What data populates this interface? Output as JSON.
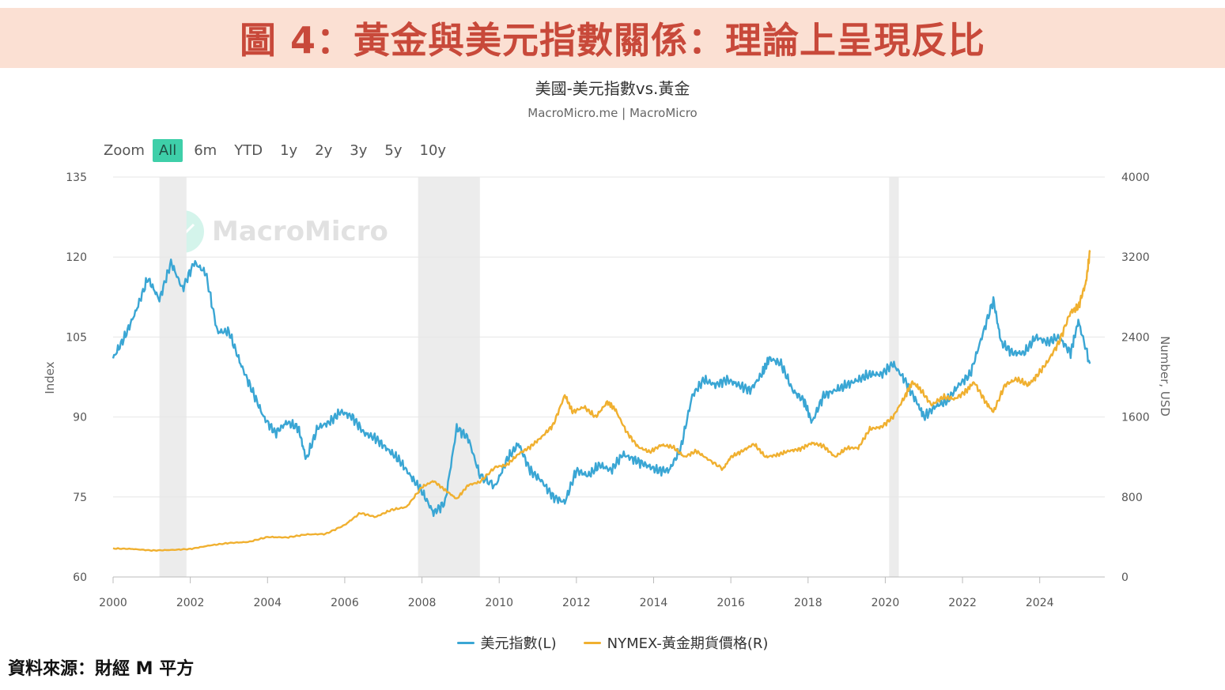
{
  "banner": {
    "title": "圖 4：黃金與美元指數關係：理論上呈現反比"
  },
  "source": "資料來源：財經 M 平方",
  "watermark": {
    "text": "MacroMicro"
  },
  "zoom": {
    "label": "Zoom",
    "buttons": [
      "All",
      "6m",
      "YTD",
      "1y",
      "2y",
      "3y",
      "5y",
      "10y"
    ],
    "active": "All"
  },
  "chart_data": {
    "type": "line",
    "title": "美國-美元指數vs.黃金",
    "subtitle": "MacroMicro.me | MacroMicro",
    "xlabel": "",
    "x_range": [
      2000.0,
      2025.3
    ],
    "x_ticks": [
      "2000",
      "2002",
      "2004",
      "2006",
      "2008",
      "2010",
      "2012",
      "2014",
      "2016",
      "2018",
      "2020",
      "2022",
      "2024"
    ],
    "y_left": {
      "label": "Index",
      "ylim": [
        60,
        135
      ],
      "ticks": [
        "135",
        "120",
        "105",
        "90",
        "75",
        "60"
      ]
    },
    "y_right": {
      "label": "Number, USD",
      "ylim": [
        0,
        4000
      ],
      "ticks": [
        "4000",
        "3200",
        "2400",
        "1600",
        "800",
        "0"
      ]
    },
    "grid": true,
    "legend_position": "bottom-center",
    "recession_bands": [
      [
        2001.2,
        2001.9
      ],
      [
        2007.9,
        2009.5
      ],
      [
        2020.1,
        2020.35
      ]
    ],
    "series": [
      {
        "name": "美元指數(L)",
        "axis": "left",
        "color": "#3aa6d4",
        "x": [
          2000.0,
          2000.3,
          2000.6,
          2000.9,
          2001.2,
          2001.5,
          2001.8,
          2002.1,
          2002.4,
          2002.7,
          2003.0,
          2003.3,
          2003.6,
          2003.9,
          2004.2,
          2004.5,
          2004.8,
          2005.0,
          2005.3,
          2005.6,
          2005.9,
          2006.2,
          2006.5,
          2006.8,
          2007.1,
          2007.4,
          2007.7,
          2008.0,
          2008.3,
          2008.6,
          2008.9,
          2009.2,
          2009.5,
          2009.9,
          2010.2,
          2010.5,
          2010.8,
          2011.1,
          2011.4,
          2011.7,
          2012.0,
          2012.3,
          2012.6,
          2012.9,
          2013.2,
          2013.5,
          2013.8,
          2014.1,
          2014.4,
          2014.7,
          2015.0,
          2015.3,
          2015.6,
          2015.9,
          2016.2,
          2016.5,
          2016.8,
          2017.0,
          2017.3,
          2017.6,
          2017.9,
          2018.1,
          2018.4,
          2018.7,
          2019.0,
          2019.3,
          2019.6,
          2019.9,
          2020.2,
          2020.5,
          2020.8,
          2021.0,
          2021.3,
          2021.6,
          2021.9,
          2022.2,
          2022.5,
          2022.8,
          2023.0,
          2023.3,
          2023.6,
          2023.9,
          2024.2,
          2024.5,
          2024.8,
          2025.0,
          2025.3
        ],
        "values": [
          101,
          105,
          110,
          116,
          112,
          119,
          114,
          119,
          117,
          106,
          106,
          100,
          95,
          90,
          87,
          89,
          88,
          82,
          88,
          89,
          91,
          90,
          87,
          86,
          84,
          82,
          79,
          76,
          72,
          74,
          88,
          86,
          79,
          77,
          82,
          85,
          80,
          78,
          75,
          74,
          80,
          79,
          81,
          80,
          83,
          82,
          81,
          80,
          80,
          84,
          94,
          97,
          96,
          97,
          96,
          95,
          98,
          101,
          100,
          95,
          93,
          89,
          94,
          95,
          96,
          97,
          98,
          98,
          100,
          97,
          93,
          90,
          92,
          93,
          96,
          98,
          105,
          112,
          104,
          102,
          102,
          105,
          104,
          105,
          102,
          108,
          100
        ]
      },
      {
        "name": "NYMEX-黃金期貨價格(R)",
        "axis": "right",
        "color": "#f0b030",
        "x": [
          2000.0,
          2000.5,
          2001.0,
          2001.5,
          2002.0,
          2002.5,
          2003.0,
          2003.5,
          2004.0,
          2004.5,
          2005.0,
          2005.5,
          2006.0,
          2006.4,
          2006.8,
          2007.2,
          2007.6,
          2008.0,
          2008.3,
          2008.6,
          2008.9,
          2009.2,
          2009.5,
          2009.9,
          2010.2,
          2010.5,
          2010.8,
          2011.1,
          2011.4,
          2011.7,
          2011.9,
          2012.2,
          2012.5,
          2012.8,
          2013.0,
          2013.3,
          2013.6,
          2013.9,
          2014.2,
          2014.5,
          2014.8,
          2015.1,
          2015.4,
          2015.8,
          2016.0,
          2016.3,
          2016.6,
          2016.9,
          2017.2,
          2017.5,
          2017.8,
          2018.1,
          2018.4,
          2018.7,
          2019.0,
          2019.3,
          2019.6,
          2019.9,
          2020.2,
          2020.5,
          2020.7,
          2020.9,
          2021.2,
          2021.5,
          2021.8,
          2022.1,
          2022.3,
          2022.6,
          2022.8,
          2023.1,
          2023.4,
          2023.7,
          2023.9,
          2024.2,
          2024.5,
          2024.8,
          2025.0,
          2025.2,
          2025.3
        ],
        "values": [
          285,
          280,
          265,
          270,
          280,
          315,
          340,
          350,
          400,
          395,
          425,
          430,
          520,
          640,
          600,
          670,
          700,
          900,
          960,
          870,
          780,
          920,
          950,
          1100,
          1120,
          1230,
          1300,
          1400,
          1520,
          1820,
          1650,
          1700,
          1600,
          1750,
          1680,
          1450,
          1300,
          1250,
          1320,
          1300,
          1200,
          1260,
          1180,
          1080,
          1200,
          1260,
          1330,
          1200,
          1220,
          1260,
          1280,
          1340,
          1310,
          1200,
          1290,
          1290,
          1480,
          1500,
          1600,
          1800,
          1950,
          1880,
          1720,
          1800,
          1780,
          1860,
          1950,
          1750,
          1650,
          1920,
          1980,
          1920,
          2000,
          2150,
          2350,
          2650,
          2700,
          2950,
          3250
        ]
      }
    ]
  }
}
